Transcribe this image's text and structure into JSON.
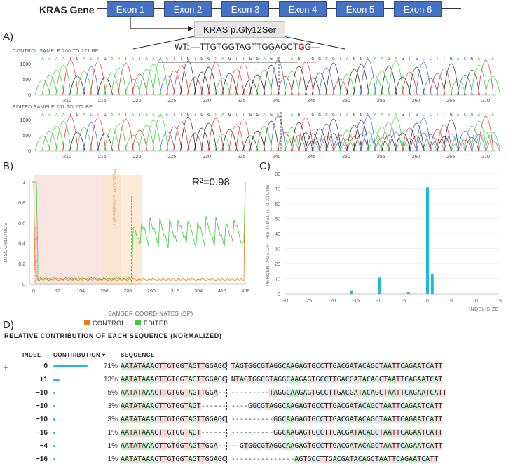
{
  "panelA": {
    "label": "A)",
    "gene_title": "KRAS Gene",
    "exons": [
      "Exon 1",
      "Exon 2",
      "Exon 3",
      "Exon 4",
      "Exon 5",
      "Exon 6"
    ],
    "mutation_box": "KRAS p.Gly12Ser",
    "wt_prefix": "WT: —TTGTGGTAGTTGGAGCT",
    "wt_mut": "G",
    "wt_suffix": "G—",
    "control_label": "CONTROL SAMPLE 206 TO 271 BP",
    "edited_label": "EDITED SAMPLE 207 TO 272 BP",
    "control_bases": "AAAATGACTGAATATAAACTTGTGGTAGTTGGAGCTAGTGGCGTAGGCAAGAGTGCCTTGACGATA",
    "edited_bases": "AAAATGACTGAATATAAACTTGTGGTAGTTGGAGCTAGTGGCGTAGGCAANAGTGCCTTGACNATA",
    "y_ticks": [
      "1000",
      "500",
      "0"
    ],
    "x_ticks": [
      "210",
      "215",
      "220",
      "225",
      "230",
      "235",
      "240",
      "245",
      "250",
      "255",
      "260",
      "265",
      "270"
    ]
  },
  "panelB": {
    "label": "B)",
    "r2": "R²=0.98",
    "ylabel": "DISCORDANCE",
    "xlabel": "SANGER COORDINATES (BP)",
    "y_ticks": [
      "1",
      "0.8",
      "0.6",
      "0.4",
      "0.2",
      "0"
    ],
    "x_ticks": [
      "0",
      "52",
      "104",
      "156",
      "208",
      "260",
      "312",
      "364",
      "416",
      "468"
    ],
    "alignment_window": "ALIGNMENT WINDOW",
    "inference_window": "INFERENCE WINDOW",
    "legend": [
      {
        "name": "CONTROL",
        "color": "#f07d1a"
      },
      {
        "name": "EDITED",
        "color": "#3ccf3c"
      }
    ]
  },
  "panelC": {
    "label": "C)",
    "ylabel": "PERCENTAGE OF THIS INDEL IN MIXTURE",
    "xlabel": "INDEL SIZE",
    "y_ticks": [
      "80",
      "70",
      "60",
      "50",
      "40",
      "30",
      "20",
      "10",
      "0"
    ],
    "x_ticks": [
      "-30",
      "-25",
      "-20",
      "-15",
      "-10",
      "-5",
      "0",
      "5",
      "10",
      "15"
    ]
  },
  "panelD": {
    "label": "D)",
    "title": "RELATIVE CONTRIBUTION OF EACH SEQUENCE (NORMALIZED)",
    "col_indel": "INDEL",
    "col_contribution": "CONTRIBUTION",
    "col_sequence": "SEQUENCE",
    "plus_marker": "+",
    "rows": [
      {
        "indel": "0",
        "pct": "71%",
        "seq": "AATATAAACTTGTGGTAGTTGGAGC TAGTGGCGTAGGCAAGAGTGCCTTGACGATACAGCTAATTCAGAATCATT"
      },
      {
        "indel": "+1",
        "pct": "13%",
        "seq": "AATATAAACTTGTGGTAGTTGGAGC NTAGTGGCGTAGGCAAGAGTGCCTTGACGATACAGCTAATTCAGAATCAT"
      },
      {
        "indel": "−10",
        "pct": "5%",
        "seq": "AATATAAACTTGTGGTAGTTGGA-- ---------TAGGCAAGAGTGCCTTGACGATACAGCTAATTCAGAATCATT"
      },
      {
        "indel": "−10",
        "pct": "3%",
        "seq": "AATATAAACTTGTGGTAGT------ ----GGCGTAGGCAAGAGTGCCTTGACGATACAGCTAATTCAGAATCATT"
      },
      {
        "indel": "−10",
        "pct": "3%",
        "seq": "AATATAAACTTGTGGTAGTTGGAGC ----------GGCAAGAGTGCCTTGACGATACAGCTAATTCAGAATCATT"
      },
      {
        "indel": "−16",
        "pct": "1%",
        "seq": "AATATAAACTTGTGGTAGT------ ----------GGCAAGAGTGCCTTGACGATACAGCTAATTCAGAATCATT"
      },
      {
        "indel": "−4",
        "pct": "1%",
        "seq": "AATATAAACTTGTGGTAGTTGGA-- --GTGGCGTAGGCAAGAGTGCCTTGACGATACAGCTAATTCAGAATCATT"
      },
      {
        "indel": "−16",
        "pct": "1%",
        "seq": "AATATAAACTTGTGGTAGTTGGAGC ---------------AGTGCCTTGACGATACAGCTAATTCAGAATCATT"
      }
    ],
    "contributions": [
      71,
      13,
      5,
      3,
      3,
      1,
      1,
      1
    ]
  },
  "chart_data": [
    {
      "type": "line",
      "title": "",
      "xlabel": "SANGER COORDINATES (BP)",
      "ylabel": "DISCORDANCE",
      "ylim": [
        0,
        1
      ],
      "series": [
        {
          "name": "CONTROL",
          "level": 0.03
        },
        {
          "name": "EDITED",
          "level_after_cut": 0.4
        }
      ]
    },
    {
      "type": "bar",
      "xlabel": "INDEL SIZE",
      "ylabel": "PERCENTAGE OF THIS INDEL IN MIXTURE",
      "ylim": [
        0,
        80
      ],
      "x": [
        -16,
        -10,
        -4,
        0,
        1
      ],
      "values": [
        2,
        11,
        1,
        71,
        13
      ]
    }
  ],
  "colors": {
    "exon": "#4472c4",
    "edited": "#3ccf3c",
    "control": "#f07d1a",
    "bar": "#1fb8e0",
    "mut": "#d21f1f"
  }
}
